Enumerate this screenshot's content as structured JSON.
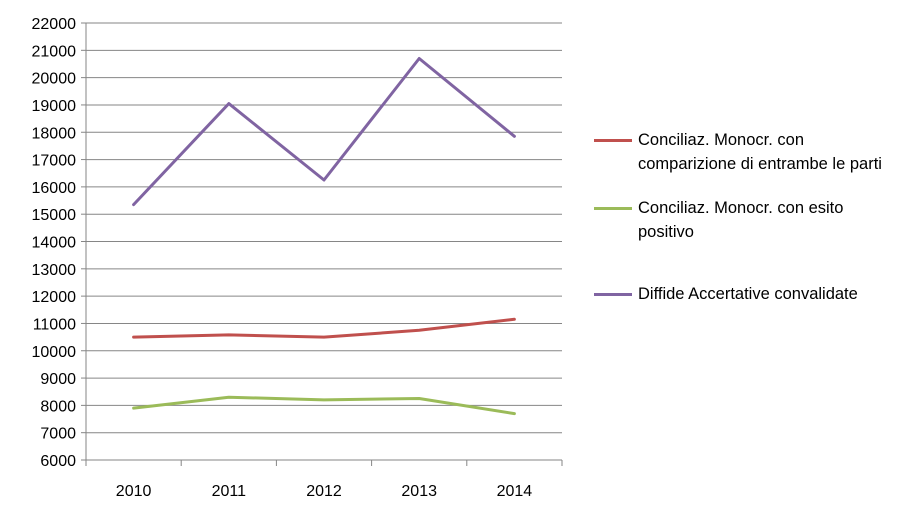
{
  "chart_data": {
    "type": "line",
    "categories": [
      "2010",
      "2011",
      "2012",
      "2013",
      "2014"
    ],
    "series": [
      {
        "name": "Conciliaz. Monocr. con comparizione di entrambe le parti",
        "color": "#c0504d",
        "values": [
          10500,
          10580,
          10500,
          10750,
          11150
        ]
      },
      {
        "name": "Conciliaz. Monocr. con esito positivo",
        "color": "#9bbb59",
        "values": [
          7900,
          8300,
          8200,
          8250,
          7700
        ]
      },
      {
        "name": "Diffide Accertative convalidate",
        "color": "#8064a2",
        "values": [
          15350,
          19050,
          16250,
          20700,
          17850
        ]
      }
    ],
    "yticks": [
      "6000",
      "7000",
      "8000",
      "9000",
      "10000",
      "11000",
      "12000",
      "13000",
      "14000",
      "15000",
      "16000",
      "17000",
      "18000",
      "19000",
      "20000",
      "21000",
      "22000"
    ],
    "ylim": [
      6000,
      22000
    ],
    "grid": true,
    "legend_position": "right",
    "gridline_color": "#868686",
    "axis_color": "#868686"
  }
}
